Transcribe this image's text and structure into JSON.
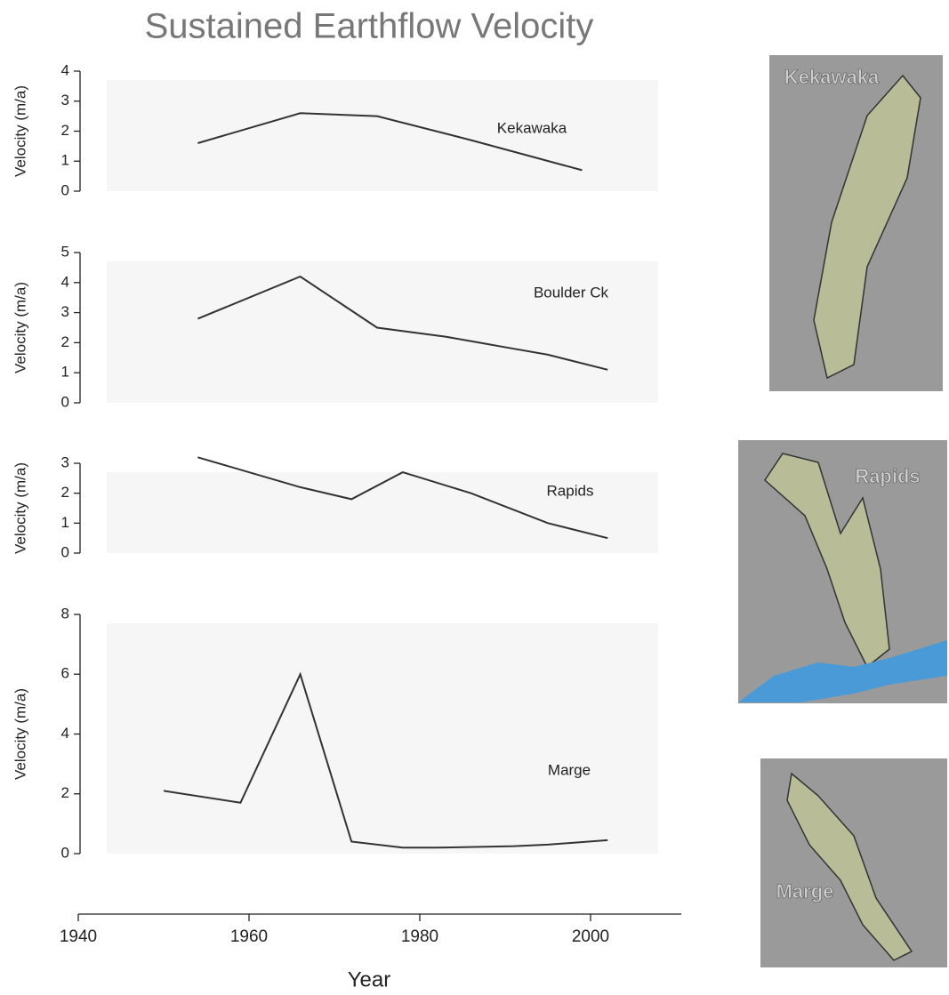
{
  "chart_data": [
    {
      "type": "line",
      "title": "Sustained Earthflow Velocity",
      "label": "Kekawaka",
      "ylabel": "Velocity (m/a)",
      "xlim": [
        1940,
        2010
      ],
      "x": [
        1954,
        1966,
        1975,
        1986,
        1999
      ],
      "values": [
        1.6,
        2.6,
        2.5,
        1.7,
        0.7
      ],
      "color": "#333333",
      "ylim": [
        0,
        4
      ],
      "yticks": [
        0,
        1,
        2,
        3,
        4
      ]
    },
    {
      "type": "line",
      "label": "Boulder Ck",
      "ylabel": "Velocity (m/a)",
      "xlim": [
        1940,
        2010
      ],
      "x": [
        1954,
        1966,
        1975,
        1983,
        1987,
        1991,
        1995,
        2002
      ],
      "values": [
        2.8,
        4.2,
        2.5,
        2.2,
        2.0,
        1.8,
        1.6,
        1.1
      ],
      "color": "#333333",
      "ylim": [
        0,
        5
      ],
      "yticks": [
        0,
        1,
        2,
        3,
        4,
        5
      ]
    },
    {
      "type": "line",
      "label": "Rapids",
      "ylabel": "Velocity (m/a)",
      "xlim": [
        1940,
        2010
      ],
      "x": [
        1954,
        1966,
        1972,
        1978,
        1986,
        1995,
        2002
      ],
      "values": [
        3.2,
        2.2,
        1.8,
        2.7,
        2.0,
        1.0,
        0.5
      ],
      "color": "#333333",
      "ylim": [
        0,
        3
      ],
      "yticks": [
        0,
        1,
        2,
        3
      ]
    },
    {
      "type": "line",
      "label": "Marge",
      "ylabel": "Velocity (m/a)",
      "xlabel": "Year",
      "xlim": [
        1940,
        2010
      ],
      "xticks": [
        1940,
        1960,
        1980,
        2000
      ],
      "x": [
        1950,
        1959,
        1966,
        1972,
        1978,
        1982,
        1991,
        1995,
        2002
      ],
      "values": [
        2.1,
        1.7,
        6.0,
        0.4,
        0.2,
        0.2,
        0.25,
        0.3,
        0.45
      ],
      "color": "#333333",
      "ylim": [
        0,
        8
      ],
      "yticks": [
        0,
        2,
        4,
        6,
        8
      ]
    }
  ],
  "maps": [
    {
      "label": "Kekawaka"
    },
    {
      "label": "Rapids"
    },
    {
      "label": "Marge"
    }
  ]
}
